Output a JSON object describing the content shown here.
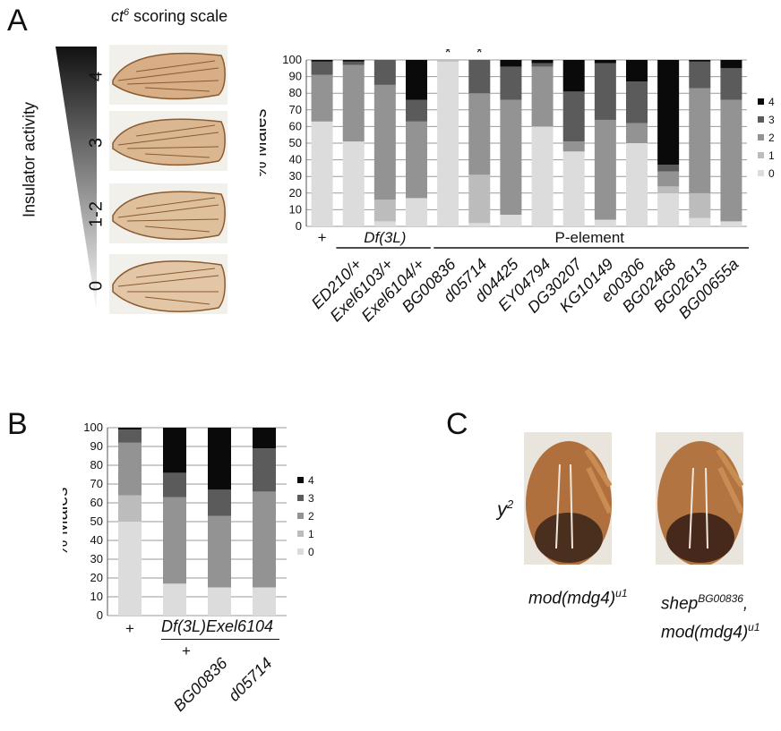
{
  "panels": {
    "a": {
      "letter": "A",
      "scale_title_base": "ct",
      "scale_title_sup": "6",
      "scale_title_rest": " scoring scale",
      "insulator_label": "Insulator activity",
      "wing_scores": [
        "4",
        "3",
        "1-2",
        "0"
      ]
    },
    "b": {
      "letter": "B"
    },
    "c": {
      "letter": "C",
      "y_label_base": "y",
      "y_label_sup": "2",
      "fly_left_label_base": "mod(mdg4)",
      "fly_left_label_sup": "u1",
      "fly_right_label_base": "shep",
      "fly_right_label_sup": "BG00836",
      "fly_right_label_comma": ",",
      "fly_right_label2_base": "mod(mdg4)",
      "fly_right_label2_sup": "u1"
    }
  },
  "chart_data": [
    {
      "type": "bar",
      "stacked": true,
      "ylabel": "% Males",
      "ylim": [
        0,
        100
      ],
      "yticks": [
        "0",
        "10",
        "20",
        "30",
        "40",
        "50",
        "60",
        "70",
        "80",
        "90",
        "100"
      ],
      "grid": true,
      "legend_position": "right",
      "legend": [
        "4",
        "3",
        "2",
        "1",
        "0"
      ],
      "colors": {
        "0": "#dcdcdc",
        "1": "#bcbcbc",
        "2": "#939393",
        "3": "#5b5b5b",
        "4": "#0a0a0a"
      },
      "categories": [
        "+",
        "ED210/+",
        "Exel6103/+",
        "Exel6104/+",
        "BG00836",
        "d05714",
        "d04425",
        "EY04794",
        "DG30207",
        "KG10149",
        "e00306",
        "BG02468",
        "BG02613",
        "BG00655a"
      ],
      "group_labels": {
        "plus": "+",
        "df": "Df(3L)",
        "pel": "P-element"
      },
      "stars": [
        "*",
        "*"
      ],
      "star_categories": [
        4,
        5
      ],
      "series": [
        {
          "name": "0",
          "values": [
            63,
            51,
            3,
            17,
            99,
            2,
            7,
            60,
            45,
            4,
            50,
            20,
            5,
            3
          ]
        },
        {
          "name": "1",
          "values": [
            0,
            0,
            13,
            0,
            1,
            29,
            0,
            0,
            0,
            0,
            0,
            4,
            15,
            0
          ]
        },
        {
          "name": "2",
          "values": [
            28,
            46,
            69,
            46,
            0,
            49,
            69,
            36,
            6,
            60,
            12,
            9,
            63,
            73
          ]
        },
        {
          "name": "3",
          "values": [
            8,
            2,
            15,
            13,
            0,
            20,
            20,
            2,
            30,
            34,
            25,
            4,
            16,
            19
          ]
        },
        {
          "name": "4",
          "values": [
            1,
            1,
            0,
            24,
            0,
            0,
            4,
            2,
            19,
            2,
            13,
            63,
            1,
            5
          ]
        }
      ]
    },
    {
      "type": "bar",
      "stacked": true,
      "ylabel": "% Males",
      "ylim": [
        0,
        100
      ],
      "yticks": [
        "0",
        "10",
        "20",
        "30",
        "40",
        "50",
        "60",
        "70",
        "80",
        "90",
        "100"
      ],
      "grid": true,
      "legend_position": "right",
      "legend": [
        "4",
        "3",
        "2",
        "1",
        "0"
      ],
      "colors": {
        "0": "#dcdcdc",
        "1": "#bcbcbc",
        "2": "#939393",
        "3": "#5b5b5b",
        "4": "#0a0a0a"
      },
      "categories": [
        "+",
        "+",
        "BG00836",
        "d05714"
      ],
      "group_label": "Df(3L)Exel6104",
      "series": [
        {
          "name": "0",
          "values": [
            50,
            17,
            15,
            15
          ]
        },
        {
          "name": "1",
          "values": [
            14,
            0,
            0,
            0
          ]
        },
        {
          "name": "2",
          "values": [
            28,
            46,
            38,
            51
          ]
        },
        {
          "name": "3",
          "values": [
            7,
            13,
            14,
            23
          ]
        },
        {
          "name": "4",
          "values": [
            1,
            24,
            33,
            11
          ]
        }
      ]
    }
  ]
}
